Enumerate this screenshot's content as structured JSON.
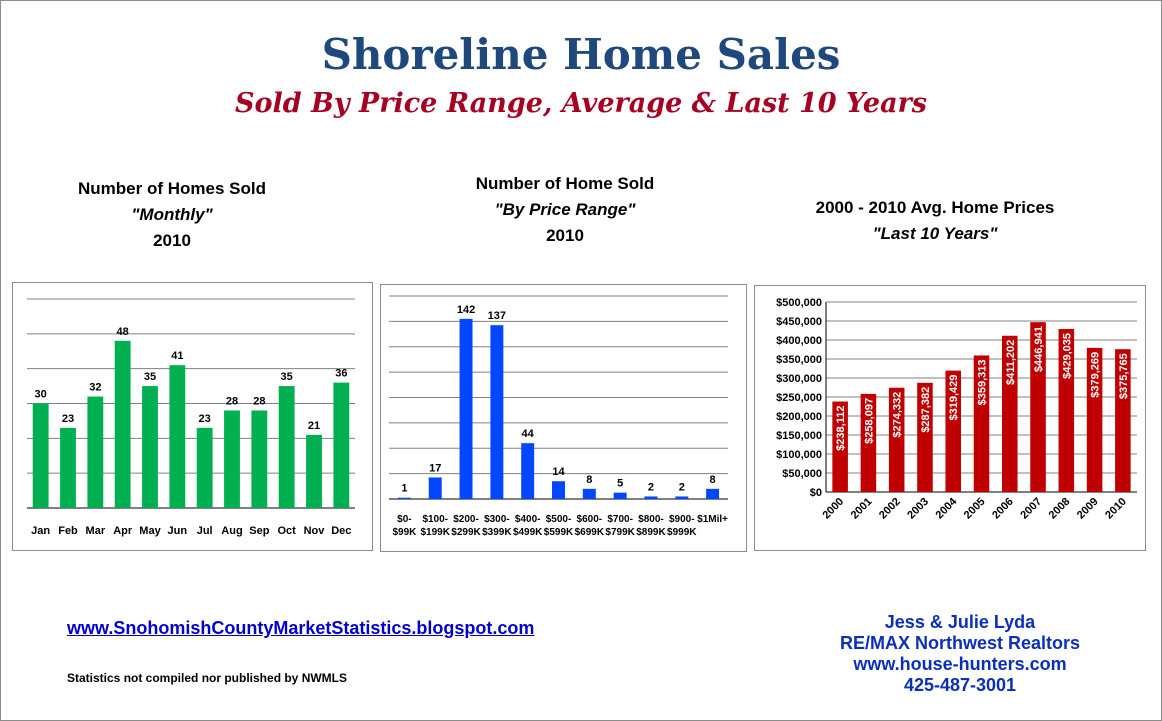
{
  "header": {
    "title": "Shoreline Home Sales",
    "subtitle": "Sold By Price Range, Average & Last 10 Years"
  },
  "colors": {
    "title": "#1f497d",
    "subtitle": "#a50021",
    "monthly_bars": "#00b050",
    "price_range_bars": "#0047ff",
    "avg_price_bars": "#c00000",
    "contact_text": "#0b2fb8"
  },
  "chart_headings": [
    {
      "line1": "Number of Homes Sold",
      "line2": "\"Monthly\"",
      "line3": "2010"
    },
    {
      "line1": "Number of Home Sold",
      "line2": "\"By Price Range\"",
      "line3": "2010"
    },
    {
      "line1": "2000 - 2010 Avg. Home Prices",
      "line2": "\"Last 10 Years\""
    }
  ],
  "chart_data": [
    {
      "type": "bar",
      "categories": [
        "Jan",
        "Feb",
        "Mar",
        "Apr",
        "May",
        "Jun",
        "Jul",
        "Aug",
        "Sep",
        "Oct",
        "Nov",
        "Dec"
      ],
      "values": [
        30,
        23,
        32,
        48,
        35,
        41,
        23,
        28,
        28,
        35,
        21,
        36
      ],
      "data_labels": [
        "30",
        "23",
        "32",
        "48",
        "35",
        "41",
        "23",
        "28",
        "28",
        "35",
        "21",
        "36"
      ],
      "ylim": [
        0,
        60
      ],
      "grid": true,
      "gridlines": [
        0,
        10,
        20,
        30,
        40,
        50,
        60
      ],
      "show_y_ticks": false
    },
    {
      "type": "bar",
      "categories": [
        "$0-$99K",
        "$100-$199K",
        "$200-$299K",
        "$300-$399K",
        "$400-$499K",
        "$500-$599K",
        "$600-$699K",
        "$700-$799K",
        "$800-$899K",
        "$900-$999K",
        "$1Mil+"
      ],
      "category_lines": [
        [
          "$0-",
          "$99K"
        ],
        [
          "$100-",
          "$199K"
        ],
        [
          "$200-",
          "$299K"
        ],
        [
          "$300-",
          "$399K"
        ],
        [
          "$400-",
          "$499K"
        ],
        [
          "$500-",
          "$599K"
        ],
        [
          "$600-",
          "$699K"
        ],
        [
          "$700-",
          "$799K"
        ],
        [
          "$800-",
          "$899K"
        ],
        [
          "$900-",
          "$999K"
        ],
        [
          "$1Mil+",
          ""
        ]
      ],
      "values": [
        1,
        17,
        142,
        137,
        44,
        14,
        8,
        5,
        2,
        2,
        8
      ],
      "data_labels": [
        "1",
        "17",
        "142",
        "137",
        "44",
        "14",
        "8",
        "5",
        "2",
        "2",
        "8"
      ],
      "ylim": [
        0,
        160
      ],
      "grid": true,
      "gridlines": [
        0,
        20,
        40,
        60,
        80,
        100,
        120,
        140,
        160
      ],
      "show_y_ticks": false
    },
    {
      "type": "bar",
      "categories": [
        "2000",
        "2001",
        "2002",
        "2003",
        "2004",
        "2005",
        "2006",
        "2007",
        "2008",
        "2009",
        "2010"
      ],
      "values": [
        238112,
        258097,
        274332,
        287382,
        319429,
        359313,
        411202,
        446941,
        429035,
        379269,
        375765
      ],
      "data_labels": [
        "$238,112",
        "$258,097",
        "$274,332",
        "$287,382",
        "$319,429",
        "$359,313",
        "$411,202",
        "$446,941",
        "$429,035",
        "$379,269",
        "$375,765"
      ],
      "ylim": [
        0,
        500000
      ],
      "y_ticks": [
        "$0",
        "$50,000",
        "$100,000",
        "$150,000",
        "$200,000",
        "$250,000",
        "$300,000",
        "$350,000",
        "$400,000",
        "$450,000",
        "$500,000"
      ],
      "grid": true,
      "gridlines": [
        0,
        50000,
        100000,
        150000,
        200000,
        250000,
        300000,
        350000,
        400000,
        450000,
        500000
      ],
      "show_y_ticks": true
    }
  ],
  "footer": {
    "link": "www.SnohomishCountyMarketStatistics.blogspot.com",
    "note": "Statistics not compiled nor published by NWMLS",
    "contact": [
      "Jess & Julie Lyda",
      "RE/MAX Northwest Realtors",
      "www.house-hunters.com",
      "425-487-3001"
    ]
  }
}
